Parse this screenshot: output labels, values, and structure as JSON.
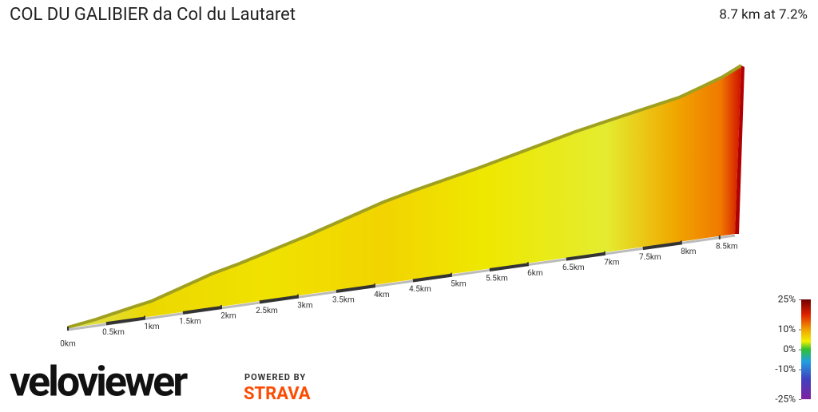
{
  "chart_data": {
    "type": "profile",
    "title": "COL DU GALIBIER da Col du Lautaret",
    "subtitle": "8.7 km at 7.2%",
    "xlim": [
      0,
      8.7
    ],
    "xticks": [
      {
        "value": 0,
        "label": "0km"
      },
      {
        "value": 0.5,
        "label": "0.5km"
      },
      {
        "value": 1,
        "label": "1km"
      },
      {
        "value": 1.5,
        "label": "1.5km"
      },
      {
        "value": 2,
        "label": "2km"
      },
      {
        "value": 2.5,
        "label": "2.5km"
      },
      {
        "value": 3,
        "label": "3km"
      },
      {
        "value": 3.5,
        "label": "3.5km"
      },
      {
        "value": 4,
        "label": "4km"
      },
      {
        "value": 4.5,
        "label": "4.5km"
      },
      {
        "value": 5,
        "label": "5km"
      },
      {
        "value": 5.5,
        "label": "5.5km"
      },
      {
        "value": 6,
        "label": "6km"
      },
      {
        "value": 6.5,
        "label": "6.5km"
      },
      {
        "value": 7,
        "label": "7km"
      },
      {
        "value": 7.5,
        "label": "7.5km"
      },
      {
        "value": 8,
        "label": "8km"
      },
      {
        "value": 8.5,
        "label": "8.5km"
      }
    ],
    "legend": {
      "ticks": [
        {
          "value": 25,
          "label": "25%"
        },
        {
          "value": 10,
          "label": "10%"
        },
        {
          "value": 0,
          "label": "0%"
        },
        {
          "value": -10,
          "label": "-10%"
        },
        {
          "value": -25,
          "label": "-25%"
        }
      ]
    }
  },
  "branding": {
    "logo": "veloviewer",
    "powered": "POWERED BY",
    "partner": "STRAVA"
  }
}
